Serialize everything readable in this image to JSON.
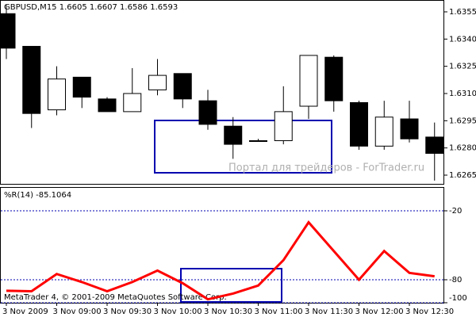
{
  "chart_data": [
    {
      "type": "candlestick",
      "title": "GBPUSD,M15  1.6605 1.6607 1.6586 1.6593",
      "watermark": "Портал для трейдеров - ForTrader.ru",
      "categories": [
        "3 Nov 2009",
        null,
        "3 Nov 09:00",
        null,
        "3 Nov 09:30",
        null,
        "3 Nov 10:00",
        null,
        "3 Nov 10:30",
        null,
        "3 Nov 11:00",
        null,
        "3 Nov 11:30",
        null,
        "3 Nov 12:00",
        null,
        "3 Nov 12:30",
        null
      ],
      "open": [
        1.6354,
        1.6336,
        1.6301,
        1.6319,
        1.6307,
        1.63,
        1.6312,
        1.6321,
        1.6306,
        1.6292,
        1.6284,
        1.6284,
        1.6303,
        1.633,
        1.6305,
        1.6281,
        1.6296,
        1.6286
      ],
      "high": [
        1.6359,
        1.6336,
        1.6325,
        1.6319,
        1.6308,
        1.6324,
        1.6329,
        1.6321,
        1.6312,
        1.6297,
        1.6285,
        1.6314,
        1.6331,
        1.6331,
        1.6306,
        1.6306,
        1.6306,
        1.6294
      ],
      "low": [
        1.6329,
        1.6291,
        1.6298,
        1.6302,
        1.63,
        1.63,
        1.6309,
        1.6302,
        1.629,
        1.6274,
        1.6284,
        1.6282,
        1.6296,
        1.63,
        1.6279,
        1.6279,
        1.6283,
        1.6262
      ],
      "close": [
        1.6335,
        1.6299,
        1.6318,
        1.6308,
        1.63,
        1.631,
        1.632,
        1.6307,
        1.6293,
        1.6282,
        1.6284,
        1.63,
        1.6331,
        1.6306,
        1.6281,
        1.6297,
        1.6285,
        1.6277
      ],
      "up_color": "#ffffff",
      "down_color": "#000000",
      "ylim": [
        1.62602,
        1.63611
      ],
      "yticks": [
        1.6355,
        {
          "value": 1.634,
          "label": "1.6340"
        },
        1.6325,
        {
          "value": 1.631,
          "label": "1.6310"
        },
        1.6295,
        {
          "value": 1.628,
          "label": "1.6280"
        },
        1.6265
      ]
    },
    {
      "type": "line",
      "title": "%R(14) -85.1064",
      "footer": "MetaTrader 4, © 2001-2009 MetaQuotes Software Corp.",
      "values": [
        -89.6,
        -90,
        -75,
        -82,
        -90,
        -82,
        -72,
        -83,
        -97,
        -92,
        -85,
        -63,
        -30,
        -55,
        -80,
        -55,
        -74,
        -77
      ],
      "color": "#ff0000",
      "ylim": [
        -100,
        0
      ],
      "yticks": [
        -20,
        -80,
        -100
      ],
      "grid": true
    }
  ]
}
